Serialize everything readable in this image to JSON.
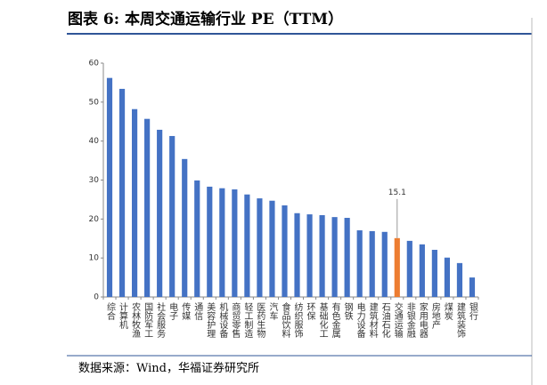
{
  "title": "图表 6:  本周交通运输行业 PE（TTM）",
  "source": "数据来源：Wind，华福证券研究所",
  "chart_data": {
    "type": "bar",
    "categories": [
      "综合",
      "计算机",
      "农林牧渔",
      "国防军工",
      "社会服务",
      "电子",
      "传媒",
      "通信",
      "美容护理",
      "机械设备",
      "商贸零售",
      "轻工制造",
      "医药生物",
      "汽车",
      "食品饮料",
      "纺织服饰",
      "环保",
      "基础化工",
      "有色金属",
      "钢铁",
      "电力设备",
      "建筑材料",
      "石油石化",
      "交通运输",
      "非银金融",
      "家用电器",
      "房地产",
      "煤炭",
      "建筑装饰",
      "银行"
    ],
    "values": [
      56.2,
      53.4,
      48.2,
      45.7,
      42.9,
      41.3,
      35.4,
      29.9,
      28.3,
      27.9,
      27.6,
      26.3,
      25.3,
      24.7,
      23.5,
      21.5,
      21.2,
      21.0,
      20.5,
      20.3,
      17.1,
      16.9,
      16.7,
      15.1,
      14.4,
      13.5,
      12.1,
      10.1,
      8.7,
      5.0
    ],
    "color": "#4472c4",
    "highlight_category": "交通运输",
    "highlight_color": "#ed7d31",
    "ylim": [
      0,
      60
    ],
    "yticks": [
      0,
      10,
      20,
      30,
      40,
      50,
      60
    ],
    "grid": false
  }
}
